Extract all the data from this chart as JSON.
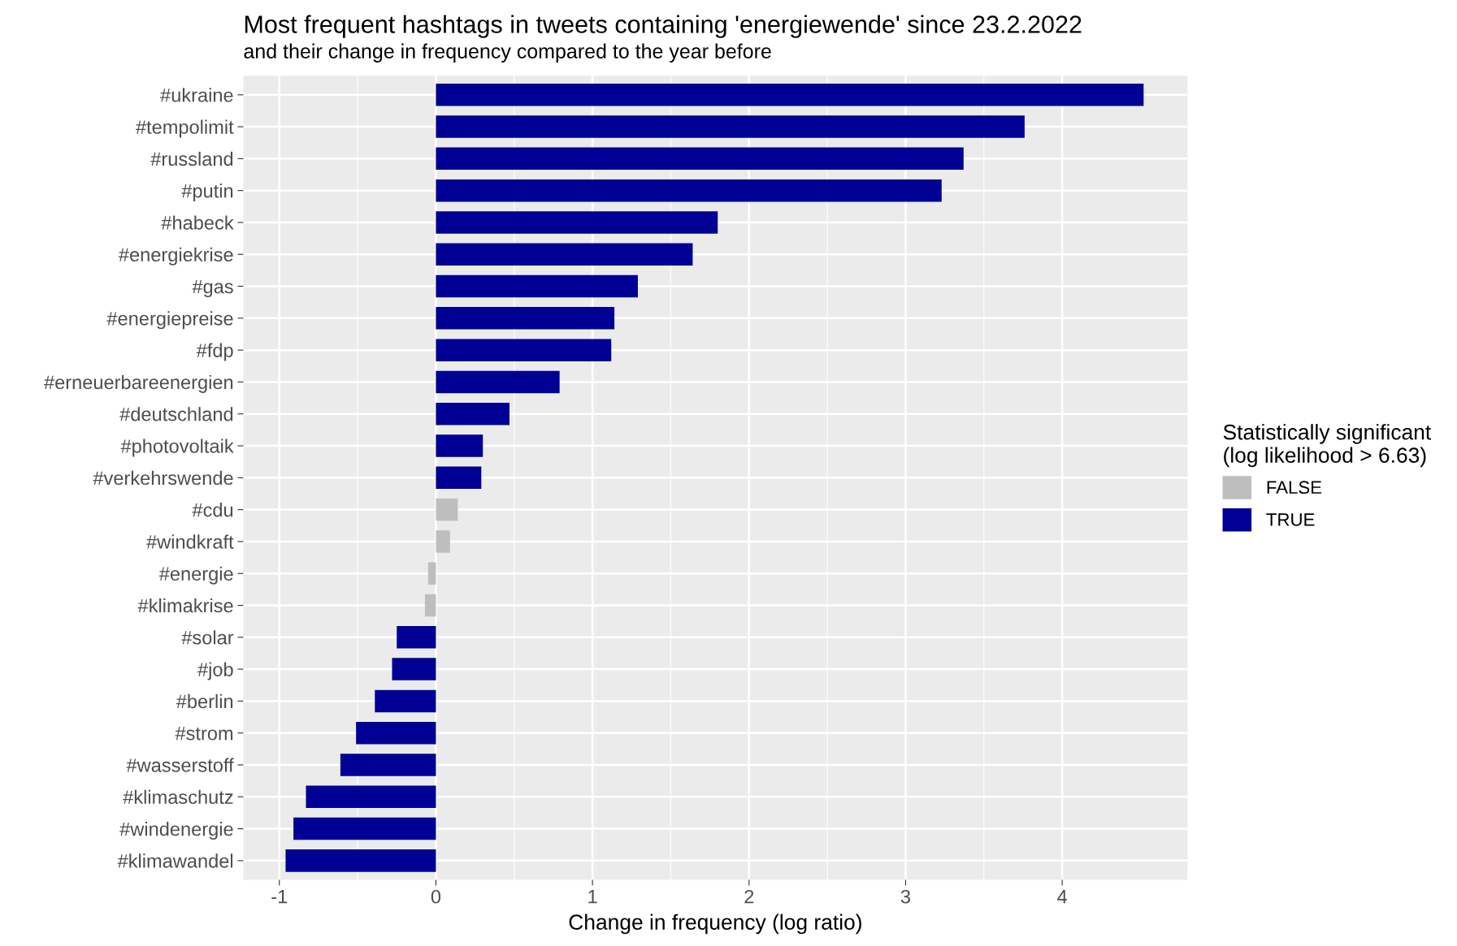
{
  "chart_data": {
    "type": "bar",
    "orientation": "horizontal",
    "title": "Most frequent hashtags in tweets containing 'energiewende' since 23.2.2022",
    "subtitle": "and their change in frequency compared to the year before",
    "xlabel": "Change in frequency (log ratio)",
    "legend_title": "Statistically significant\n(log likelihood > 6.63)",
    "categories": [
      "#ukraine",
      "#tempolimit",
      "#russland",
      "#putin",
      "#habeck",
      "#energiekrise",
      "#gas",
      "#energiepreise",
      "#fdp",
      "#erneuerbareenergien",
      "#deutschland",
      "#photovoltaik",
      "#verkehrswende",
      "#cdu",
      "#windkraft",
      "#energie",
      "#klimakrise",
      "#solar",
      "#job",
      "#berlin",
      "#strom",
      "#wasserstoff",
      "#klimaschutz",
      "#windenergie",
      "#klimawandel"
    ],
    "series": [
      {
        "name": "FALSE",
        "color": "#bebebe",
        "values": [
          null,
          null,
          null,
          null,
          null,
          null,
          null,
          null,
          null,
          null,
          null,
          null,
          null,
          0.14,
          0.09,
          -0.05,
          -0.07,
          null,
          null,
          null,
          null,
          null,
          null,
          null,
          null
        ]
      },
      {
        "name": "TRUE",
        "color": "#000094",
        "values": [
          4.52,
          3.76,
          3.37,
          3.23,
          1.8,
          1.64,
          1.29,
          1.14,
          1.12,
          0.79,
          0.47,
          0.3,
          0.29,
          null,
          null,
          null,
          null,
          -0.25,
          -0.28,
          -0.39,
          -0.51,
          -0.61,
          -0.83,
          -0.91,
          -0.96
        ]
      }
    ],
    "xlim": [
      -1.23,
      4.8
    ],
    "xticks": [
      {
        "value": -1,
        "label": "-1"
      },
      0,
      1,
      2,
      3,
      4
    ],
    "grid": true,
    "legend": "right"
  }
}
